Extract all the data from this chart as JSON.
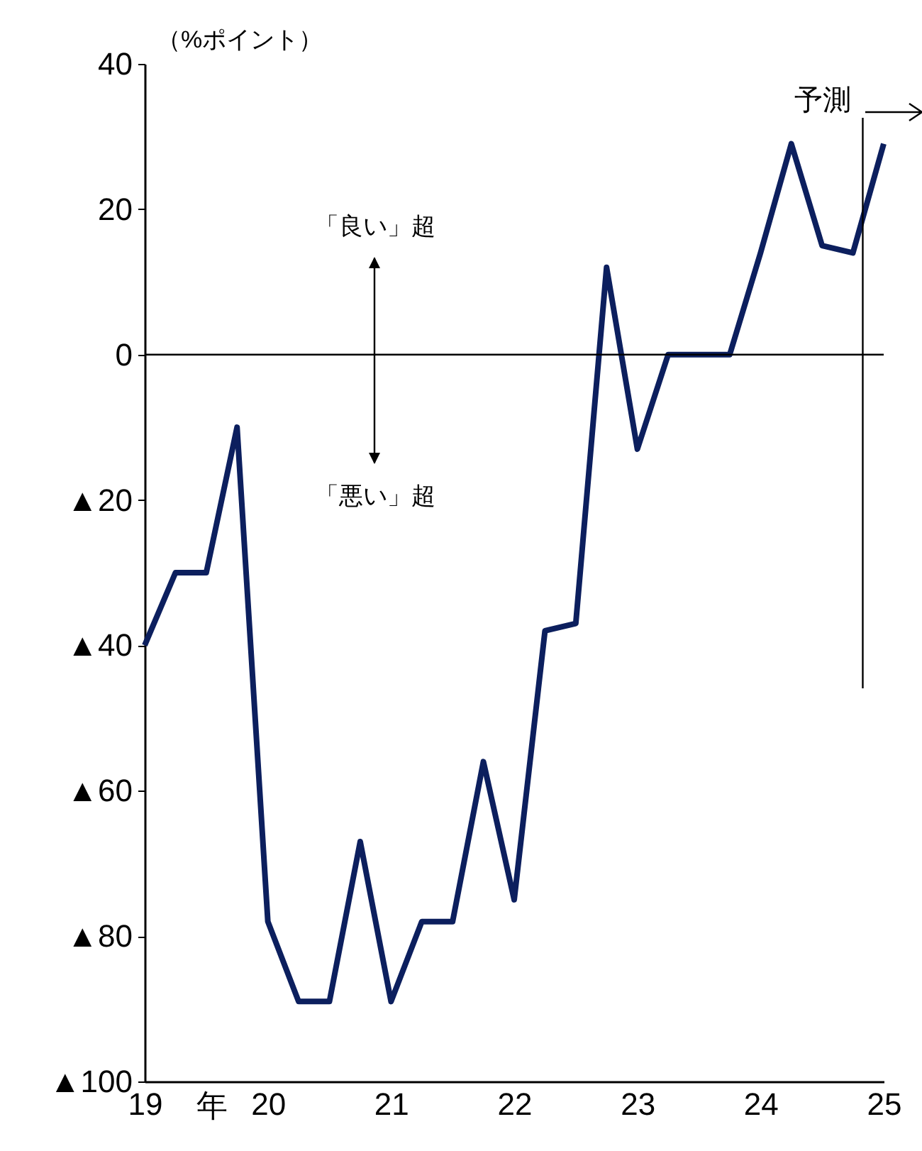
{
  "chart_data": {
    "type": "line",
    "ylabel": "（%ポイント）",
    "xlabel": "年",
    "x": [
      2019,
      2019.25,
      2019.5,
      2019.75,
      2020,
      2020.25,
      2020.5,
      2020.75,
      2021,
      2021.25,
      2021.5,
      2021.75,
      2022,
      2022.25,
      2022.5,
      2022.75,
      2023,
      2023.25,
      2023.5,
      2023.75,
      2024,
      2024.25,
      2024.5,
      2024.75,
      2025
    ],
    "series": [
      {
        "color": "#0c1f5e",
        "values": [
          -40,
          -30,
          -30,
          -10,
          -78,
          -89,
          -89,
          -67,
          -89,
          -78,
          -78,
          -56,
          -75,
          -38,
          -37,
          12,
          -13,
          0,
          0,
          0,
          14,
          29,
          15,
          14,
          29
        ]
      }
    ],
    "xlim": [
      2019,
      2025
    ],
    "xticks": [
      {
        "value": 2019,
        "label": "19"
      },
      {
        "value": 2020,
        "label": "20"
      },
      {
        "value": 2021,
        "label": "21"
      },
      {
        "value": 2022,
        "label": "22"
      },
      {
        "value": 2023,
        "label": "23"
      },
      {
        "value": 2024,
        "label": "24"
      },
      {
        "value": 2025,
        "label": "25"
      }
    ],
    "ylim": [
      -100,
      40
    ],
    "yticks": [
      {
        "value": -100,
        "label": "▲100"
      },
      {
        "value": -80,
        "label": "▲80"
      },
      {
        "value": -60,
        "label": "▲60"
      },
      {
        "value": -40,
        "label": "▲40"
      },
      {
        "value": -20,
        "label": "▲20"
      },
      0,
      20,
      40
    ],
    "ref_lines": [
      {
        "axis": "y",
        "value": 0,
        "color": "#000000"
      },
      {
        "axis": "x",
        "value": 2024.83,
        "label": "予測",
        "color": "#000000"
      }
    ],
    "annotations": [
      "「良い」超",
      "「悪い」超"
    ],
    "line_style": "solid",
    "marker": "none"
  }
}
